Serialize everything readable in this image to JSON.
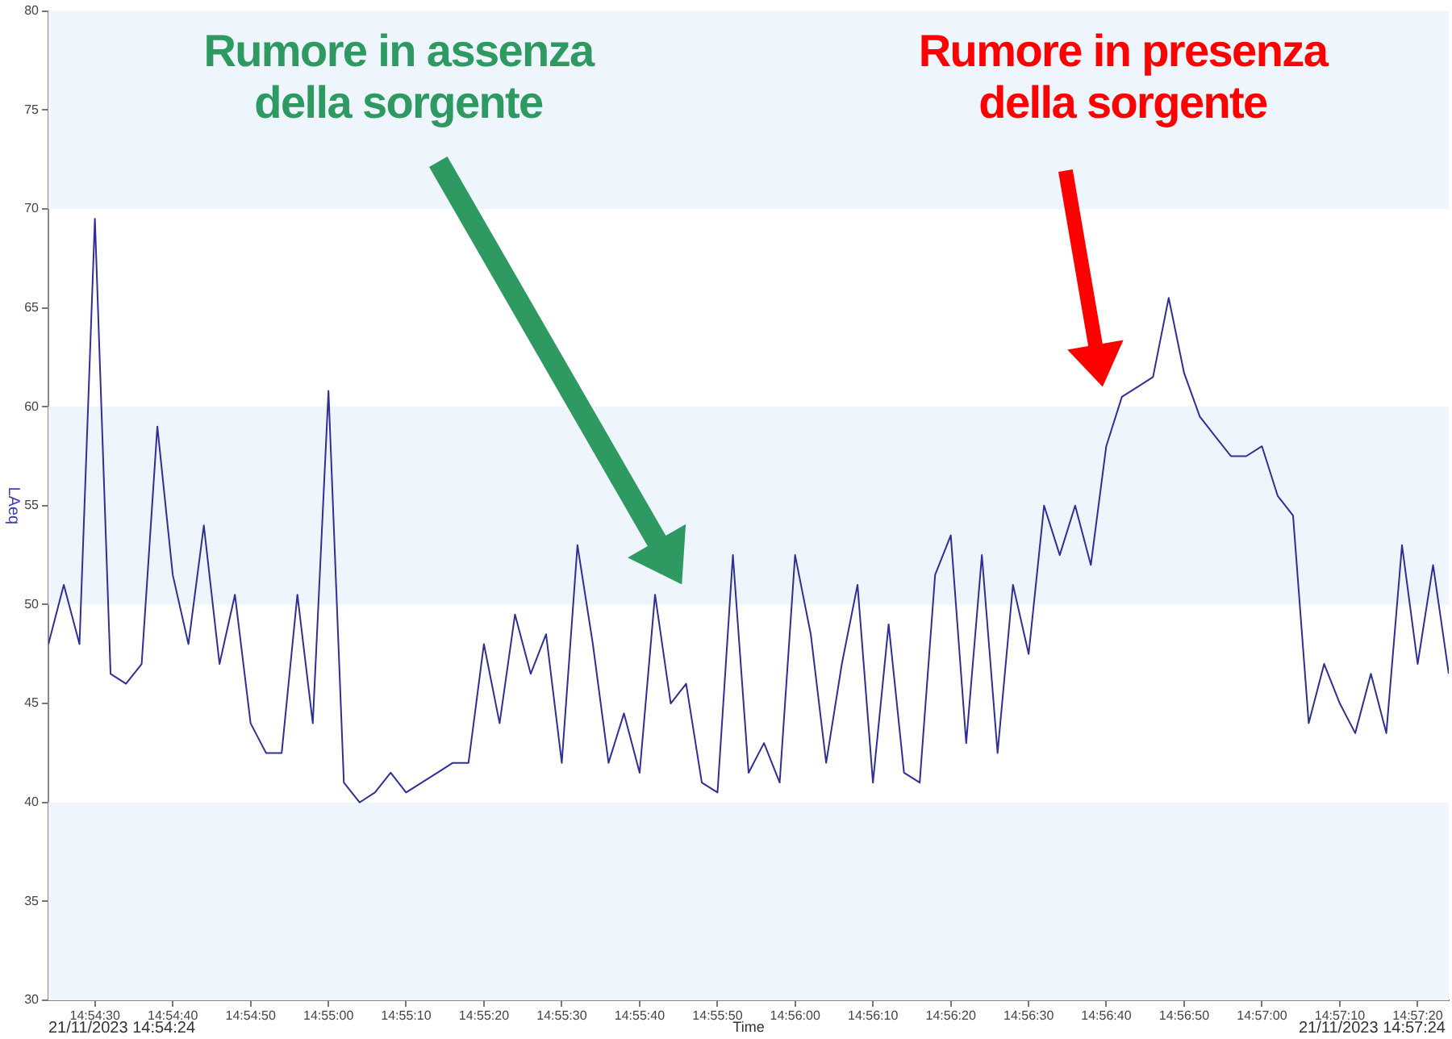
{
  "chart_data": {
    "type": "line",
    "xlabel": "Time",
    "ylabel": "LAeq",
    "x": [
      14.90667,
      14.90722,
      14.90778,
      14.90833,
      14.90889,
      14.90944,
      14.91,
      14.91056,
      14.91111,
      14.91167,
      14.91222,
      14.91278,
      14.91333,
      14.91389,
      14.91444,
      14.915,
      14.91556,
      14.91611,
      14.91667,
      14.91722,
      14.91778,
      14.91833,
      14.91889,
      14.91944,
      14.92,
      14.92056,
      14.92111,
      14.92167,
      14.92222,
      14.92278,
      14.92333,
      14.92389,
      14.92444,
      14.925,
      14.92556,
      14.92611,
      14.92667,
      14.92722,
      14.92778,
      14.92833,
      14.92889,
      14.92944,
      14.93,
      14.93056,
      14.93111,
      14.93167,
      14.93222,
      14.93278,
      14.93333,
      14.93389,
      14.93444,
      14.935,
      14.93556,
      14.93611,
      14.93667,
      14.93722,
      14.93778,
      14.93833,
      14.93889,
      14.93944,
      14.94,
      14.94056,
      14.94111,
      14.94167,
      14.94222,
      14.94278,
      14.94333,
      14.94389,
      14.94444,
      14.945,
      14.94556,
      14.94611,
      14.94667,
      14.94722,
      14.94778,
      14.94833,
      14.94889,
      14.94944,
      14.95,
      14.95056,
      14.95111,
      14.95167,
      14.95222,
      14.95278,
      14.95333,
      14.95389,
      14.95444,
      14.955,
      14.95556,
      14.95611,
      14.95667
    ],
    "series": [
      {
        "color": "#2f2f95",
        "values": [
          48,
          51,
          48,
          69.5,
          46.5,
          46,
          47,
          59,
          51.5,
          48,
          54,
          47,
          50.5,
          44,
          42.5,
          42.5,
          50.5,
          44,
          60.8,
          41,
          40,
          40.5,
          41.5,
          40.5,
          41,
          41.5,
          42,
          42,
          48,
          44,
          49.5,
          46.5,
          48.5,
          42,
          53,
          48,
          42,
          44.5,
          41.5,
          50.5,
          45,
          46,
          41,
          40.5,
          52.5,
          41.5,
          43,
          41,
          52.5,
          48.5,
          42,
          47,
          51,
          41,
          49,
          41.5,
          41,
          51.5,
          53.5,
          43,
          52.5,
          42.5,
          51,
          47.5,
          55,
          52.5,
          55,
          52,
          58,
          60.5,
          61,
          61.5,
          65.5,
          61.7,
          59.5,
          58.5,
          57.5,
          57.5,
          58,
          55.5,
          54.5,
          44,
          47,
          45,
          43.5,
          46.5,
          43.5,
          53,
          47,
          52,
          46.5
        ]
      }
    ],
    "xlim": [
      14.90667,
      14.95667
    ],
    "xticks": [
      {
        "value": 14.90833,
        "label": "14:54:30"
      },
      {
        "value": 14.91111,
        "label": "14:54:40"
      },
      {
        "value": 14.91389,
        "label": "14:54:50"
      },
      {
        "value": 14.91667,
        "label": "14:55:00"
      },
      {
        "value": 14.91944,
        "label": "14:55:10"
      },
      {
        "value": 14.92222,
        "label": "14:55:20"
      },
      {
        "value": 14.925,
        "label": "14:55:30"
      },
      {
        "value": 14.92778,
        "label": "14:55:40"
      },
      {
        "value": 14.93056,
        "label": "14:55:50"
      },
      {
        "value": 14.93333,
        "label": "14:56:00"
      },
      {
        "value": 14.93611,
        "label": "14:56:10"
      },
      {
        "value": 14.93889,
        "label": "14:56:20"
      },
      {
        "value": 14.94167,
        "label": "14:56:30"
      },
      {
        "value": 14.94444,
        "label": "14:56:40"
      },
      {
        "value": 14.94722,
        "label": "14:56:50"
      },
      {
        "value": 14.95,
        "label": "14:57:00"
      },
      {
        "value": 14.95278,
        "label": "14:57:10"
      },
      {
        "value": 14.95556,
        "label": "14:57:20"
      }
    ],
    "ylim": [
      30,
      80
    ],
    "yticks": [
      30,
      35,
      40,
      45,
      50,
      55,
      60,
      65,
      70,
      75,
      80
    ],
    "bands": [
      {
        "axis": "y",
        "from": 30,
        "to": 40,
        "color": "#eef5fd"
      },
      {
        "axis": "y",
        "from": 50,
        "to": 60,
        "color": "#eef5fd"
      },
      {
        "axis": "y",
        "from": 70,
        "to": 80,
        "color": "#eef5fd"
      }
    ],
    "annotations": [
      "Rumore in assenza\ndella sorgente",
      "Rumore in presenza\ndella sorgente",
      "21/11/2023 14:54:24",
      "21/11/2023 14:57:24"
    ]
  }
}
